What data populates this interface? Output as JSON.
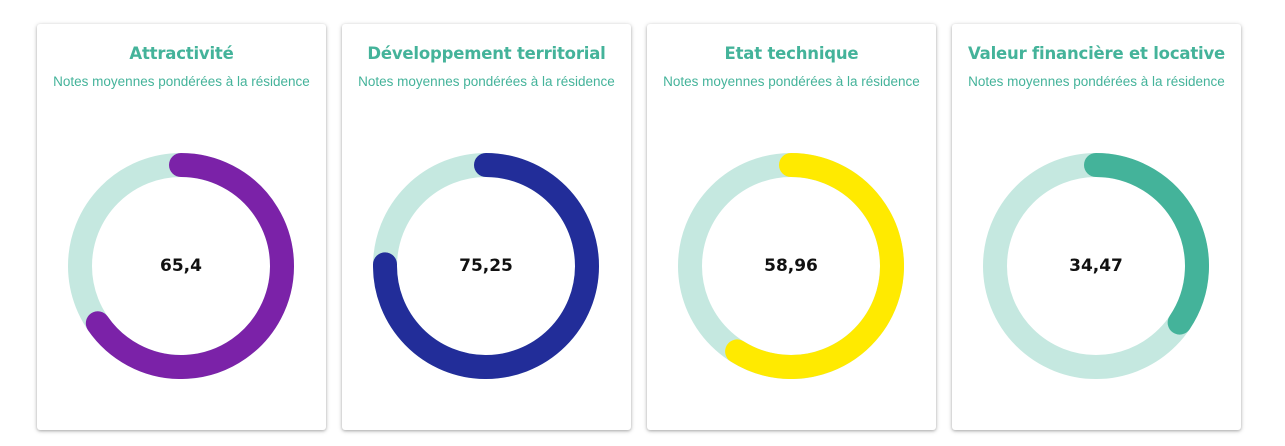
{
  "colors": {
    "heading": "#44b39a",
    "track": "#c5e8e0"
  },
  "cards": [
    {
      "title": "Attractivité",
      "subtitle": "Notes moyennes pondérées à la résidence",
      "value_label": "65,4",
      "value": 65.4,
      "color": "#7b22a8"
    },
    {
      "title": "Développement territorial",
      "subtitle": "Notes moyennes pondérées à la résidence",
      "value_label": "75,25",
      "value": 75.25,
      "color": "#222d99"
    },
    {
      "title": "Etat technique",
      "subtitle": "Notes moyennes pondérées à la résidence",
      "value_label": "58,96",
      "value": 58.96,
      "color": "#ffea00"
    },
    {
      "title": "Valeur financière et locative",
      "subtitle": "Notes moyennes pondérées à la résidence",
      "value_label": "34,47",
      "value": 34.47,
      "color": "#44b39a"
    }
  ]
}
